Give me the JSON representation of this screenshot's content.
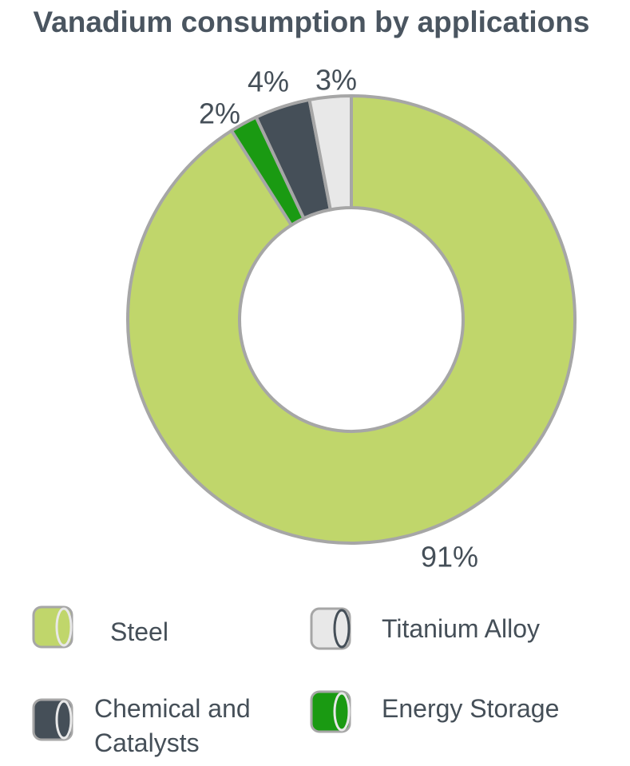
{
  "chart_data": {
    "type": "donut",
    "title": "Vanadium consumption by applications",
    "categories": [
      "Steel",
      "Energy Storage",
      "Chemical and Catalysts",
      "Titanium Alloy"
    ],
    "values": [
      91,
      2,
      4,
      3
    ],
    "value_labels": [
      "91%",
      "2%",
      "4%",
      "3%"
    ],
    "colors": [
      "#c0d66b",
      "#1a9a12",
      "#454f58",
      "#e8e8e8"
    ]
  }
}
